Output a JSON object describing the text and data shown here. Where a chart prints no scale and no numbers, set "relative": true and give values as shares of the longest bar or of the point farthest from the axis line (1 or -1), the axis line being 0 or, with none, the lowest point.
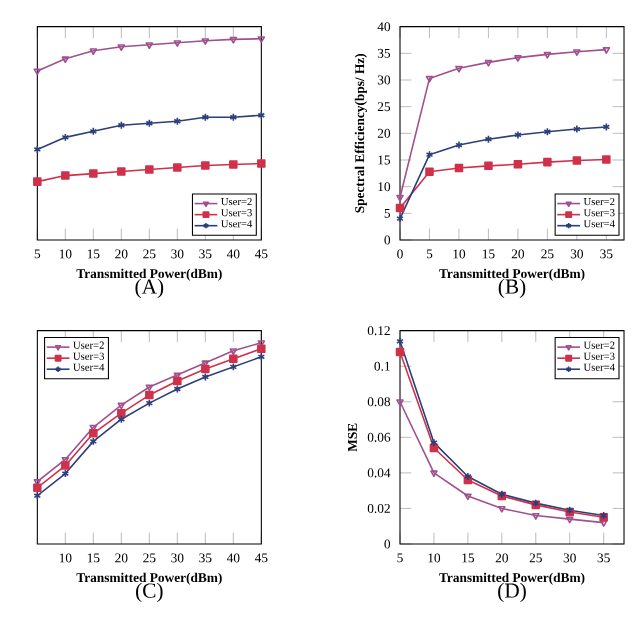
{
  "chart_data": [
    {
      "type": "line",
      "title": "(A)",
      "xlabel": "Transmitted Power(dBm)",
      "relative": true,
      "x": [
        5,
        10,
        15,
        20,
        25,
        30,
        35,
        40,
        45
      ],
      "xlim": [
        5,
        45
      ],
      "xticks": [
        5,
        10,
        15,
        20,
        25,
        30,
        35,
        40,
        45
      ],
      "legend": "bottom right",
      "tick_labels": "x",
      "series": [
        {
          "name": "User=2",
          "color": "#a0508f",
          "marker": "triangle",
          "values": [
            0.84,
            0.9,
            0.94,
            0.96,
            0.97,
            0.98,
            0.99,
            0.997,
            1
          ]
        },
        {
          "name": "User=3",
          "color": "#d0304a",
          "marker": "square",
          "values": [
            0.29,
            0.32,
            0.33,
            0.34,
            0.35,
            0.36,
            0.37,
            0.375,
            0.38
          ]
        },
        {
          "name": "User=4",
          "color": "#2b3f7a",
          "marker": "cross",
          "values": [
            0.45,
            0.51,
            0.54,
            0.57,
            0.58,
            0.59,
            0.61,
            0.61,
            0.62
          ]
        }
      ]
    },
    {
      "type": "line",
      "title": "(B)",
      "xlabel": "Transmitted Power(dBm)",
      "ylabel": "Spectral Efficiency(bps/ Hz)",
      "x": [
        0,
        5,
        10,
        15,
        20,
        25,
        30,
        35
      ],
      "xlim": [
        0,
        38
      ],
      "xticks": [
        0,
        5,
        10,
        15,
        20,
        25,
        30,
        35
      ],
      "ylim": [
        0,
        40
      ],
      "yticks": [
        0,
        5,
        10,
        15,
        20,
        25,
        30,
        35,
        40
      ],
      "legend": "bottom right",
      "series": [
        {
          "name": "User=2",
          "color": "#a0508f",
          "marker": "triangle",
          "values": [
            8,
            30.3,
            32.2,
            33.3,
            34.2,
            34.8,
            35.3,
            35.7
          ]
        },
        {
          "name": "User=3",
          "color": "#d0304a",
          "marker": "square",
          "values": [
            6,
            12.8,
            13.5,
            13.9,
            14.2,
            14.6,
            14.9,
            15.1
          ]
        },
        {
          "name": "User=4",
          "color": "#2b3f7a",
          "marker": "cross",
          "values": [
            4,
            16,
            17.8,
            18.9,
            19.7,
            20.3,
            20.8,
            21.2
          ]
        }
      ]
    },
    {
      "type": "line",
      "title": "(C)",
      "xlabel": "Transmitted Power(dBm)",
      "relative": true,
      "x": [
        5,
        10,
        15,
        20,
        25,
        30,
        35,
        40,
        45
      ],
      "xlim": [
        5,
        45
      ],
      "xticks": [
        10,
        15,
        20,
        25,
        30,
        35,
        40,
        45
      ],
      "legend": "top left",
      "tick_labels": "x",
      "series": [
        {
          "name": "User=2",
          "color": "#a0508f",
          "marker": "triangle",
          "values": [
            0.31,
            0.42,
            0.58,
            0.69,
            0.78,
            0.84,
            0.9,
            0.96,
            1
          ]
        },
        {
          "name": "User=3",
          "color": "#d0304a",
          "marker": "square",
          "values": [
            0.28,
            0.39,
            0.55,
            0.65,
            0.74,
            0.81,
            0.87,
            0.92,
            0.97
          ]
        },
        {
          "name": "User=4",
          "color": "#2b3f7a",
          "marker": "cross",
          "values": [
            0.24,
            0.35,
            0.51,
            0.62,
            0.7,
            0.77,
            0.83,
            0.88,
            0.93
          ]
        }
      ]
    },
    {
      "type": "line",
      "title": "(D)",
      "xlabel": "Transmitted Power(dBm)",
      "ylabel": "MSE",
      "x": [
        5,
        10,
        15,
        20,
        25,
        30,
        35
      ],
      "xlim": [
        5,
        38
      ],
      "xticks": [
        5,
        10,
        15,
        20,
        25,
        30,
        35
      ],
      "ylim": [
        0,
        0.12
      ],
      "yticks": [
        0,
        0.02,
        0.04,
        0.06,
        0.08,
        0.1,
        0.12
      ],
      "legend": "top right",
      "series": [
        {
          "name": "User=2",
          "color": "#a0508f",
          "marker": "triangle",
          "values": [
            0.08,
            0.04,
            0.027,
            0.02,
            0.016,
            0.014,
            0.012
          ]
        },
        {
          "name": "User=3",
          "color": "#d0304a",
          "marker": "square",
          "values": [
            0.108,
            0.054,
            0.036,
            0.027,
            0.022,
            0.018,
            0.015
          ]
        },
        {
          "name": "User=4",
          "color": "#2b3f7a",
          "marker": "cross",
          "values": [
            0.114,
            0.057,
            0.038,
            0.028,
            0.023,
            0.019,
            0.016
          ]
        }
      ]
    }
  ]
}
